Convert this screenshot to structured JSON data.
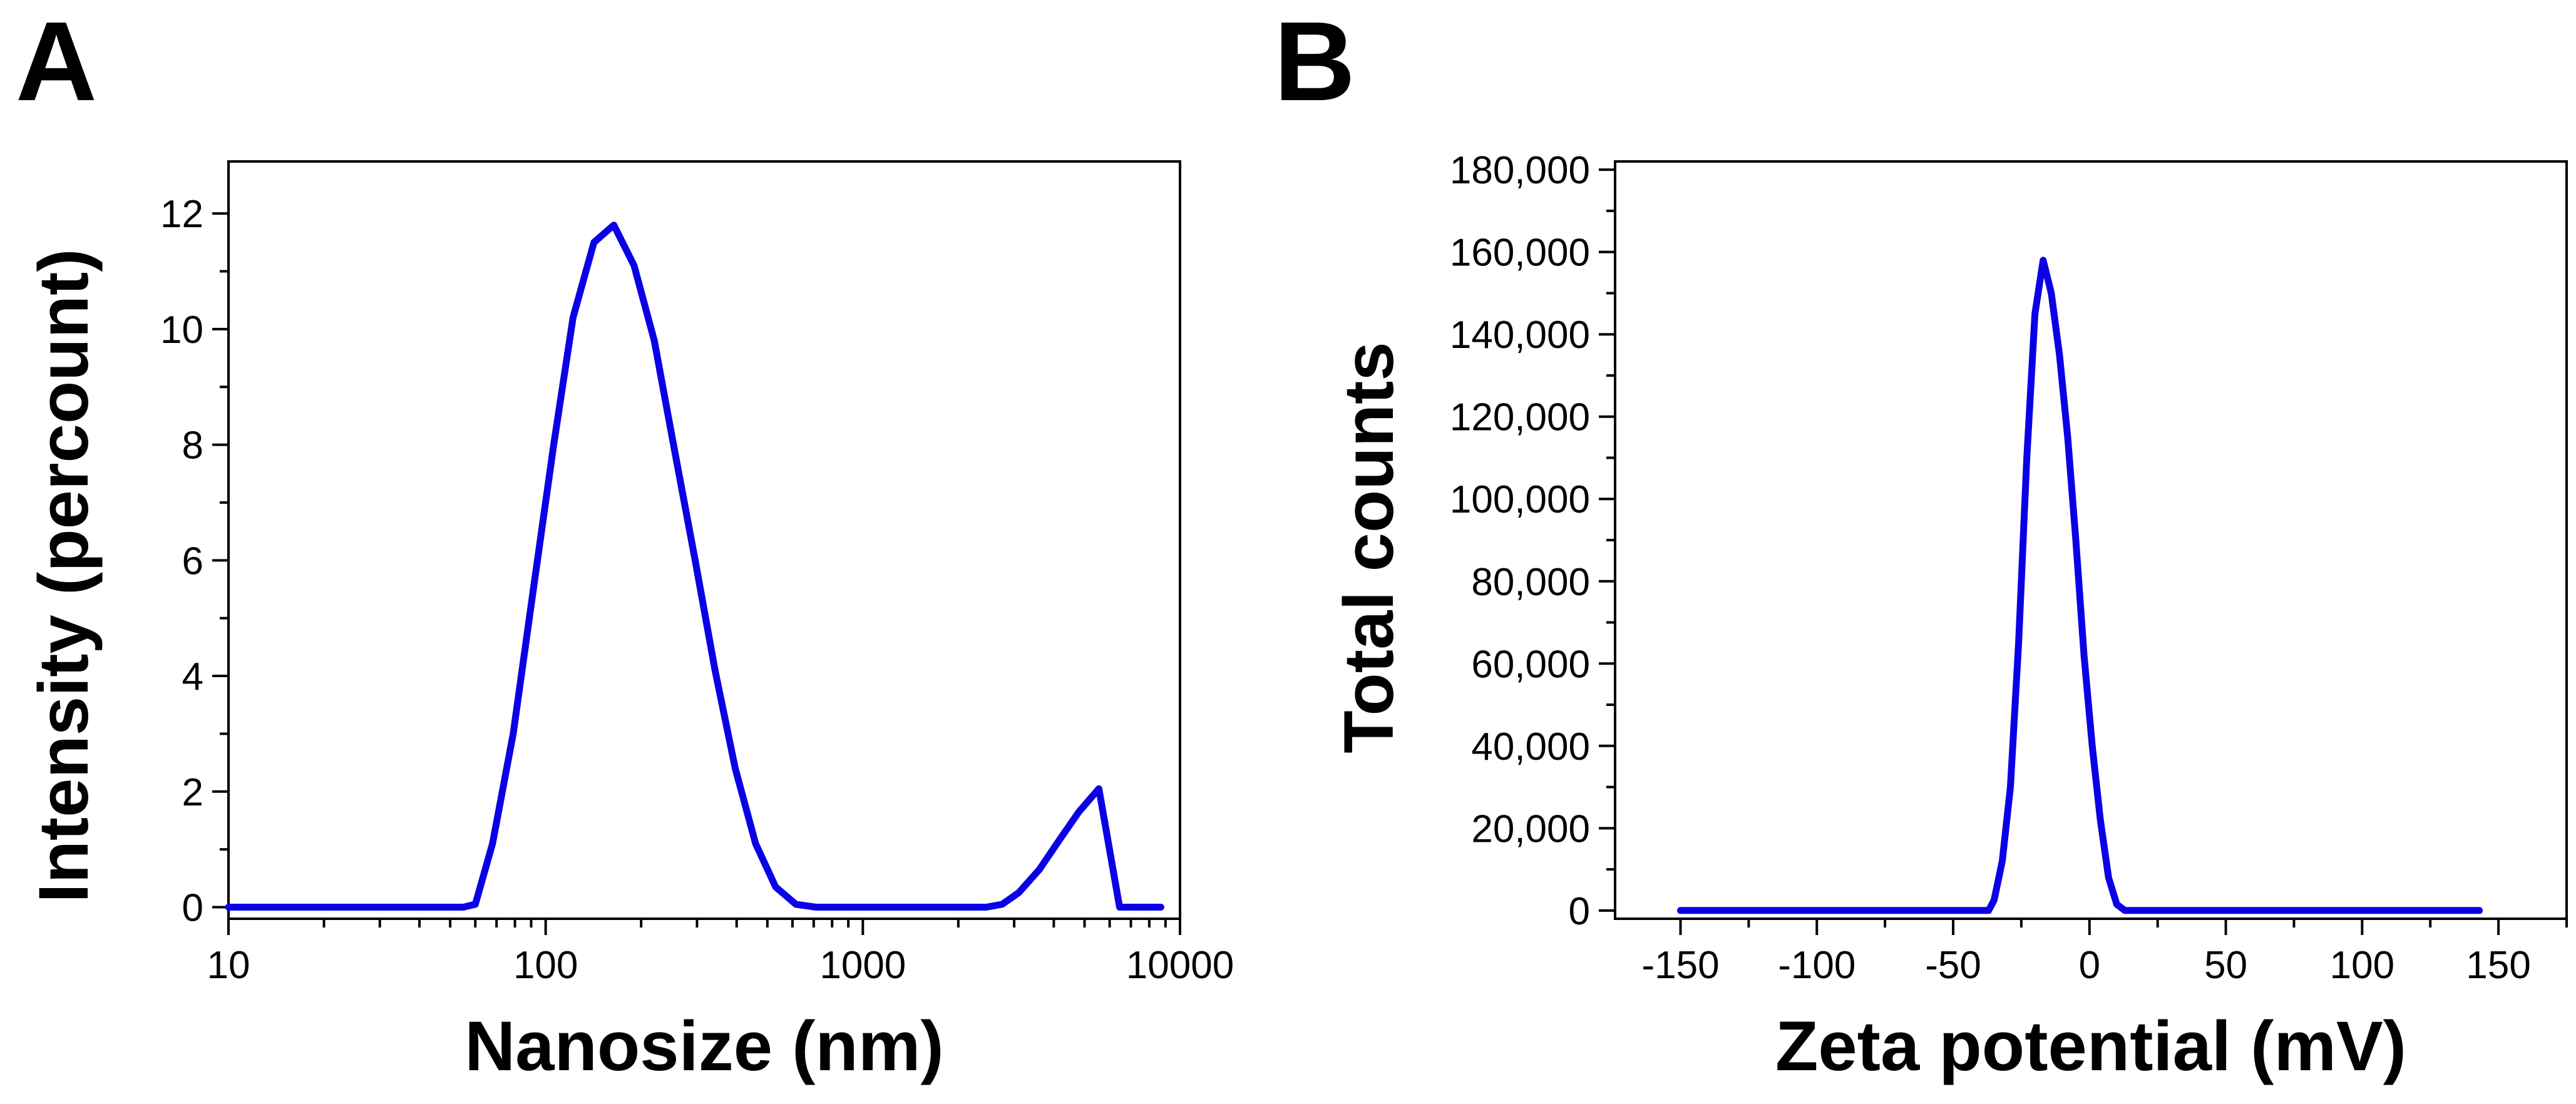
{
  "colors": {
    "series": "#0a00e6",
    "axis": "#000000"
  },
  "chart_data": [
    {
      "type": "line",
      "panel": "A",
      "title": "",
      "xlabel": "Nanosize (nm)",
      "ylabel": "Intensity (percount)",
      "xscale": "log",
      "xlim": [
        10,
        10000
      ],
      "ylim": [
        -0.2,
        12.9
      ],
      "grid": false,
      "xticks": [
        {
          "value": 10,
          "label": "10"
        },
        {
          "value": 100,
          "label": "100"
        },
        {
          "value": 1000,
          "label": "1000"
        },
        {
          "value": 10000,
          "label": "10000"
        }
      ],
      "yticks": [
        {
          "value": 0,
          "label": "0"
        },
        {
          "value": 2,
          "label": "2"
        },
        {
          "value": 4,
          "label": "4"
        },
        {
          "value": 6,
          "label": "6"
        },
        {
          "value": 8,
          "label": "8"
        },
        {
          "value": 10,
          "label": "10"
        },
        {
          "value": 12,
          "label": "12"
        }
      ],
      "series": [
        {
          "name": "Intensity",
          "x": [
            10,
            20,
            40,
            55,
            60,
            68,
            79,
            92,
            106,
            122,
            142,
            164,
            190,
            220,
            255,
            296,
            342,
            396,
            459,
            531,
            615,
            712,
            825,
            955,
            1100,
            1300,
            1500,
            1800,
            2100,
            2450,
            2750,
            3100,
            3600,
            4150,
            4800,
            5550,
            6450,
            7000,
            8000,
            8700
          ],
          "y": [
            0,
            0,
            0,
            0,
            0.05,
            1.1,
            3.0,
            5.6,
            8.0,
            10.2,
            11.5,
            11.8,
            11.1,
            9.8,
            7.9,
            6.0,
            4.1,
            2.4,
            1.1,
            0.35,
            0.05,
            0,
            0,
            0,
            0,
            0,
            0,
            0,
            0,
            0,
            0.05,
            0.25,
            0.65,
            1.15,
            1.65,
            2.05,
            0,
            0,
            0,
            0
          ]
        }
      ]
    },
    {
      "type": "line",
      "panel": "B",
      "title": "",
      "xlabel": "Zeta potential (mV)",
      "ylabel": "Total counts",
      "xlim": [
        -174,
        175
      ],
      "ylim": [
        -2000,
        182000
      ],
      "grid": false,
      "xticks": [
        {
          "value": -150,
          "label": "-150"
        },
        {
          "value": -100,
          "label": "-100"
        },
        {
          "value": -50,
          "label": "-50"
        },
        {
          "value": 0,
          "label": "0"
        },
        {
          "value": 50,
          "label": "50"
        },
        {
          "value": 100,
          "label": "100"
        },
        {
          "value": 150,
          "label": "150"
        }
      ],
      "yticks": [
        {
          "value": 0,
          "label": "0"
        },
        {
          "value": 20000,
          "label": "20,000"
        },
        {
          "value": 40000,
          "label": "40,000"
        },
        {
          "value": 60000,
          "label": "60,000"
        },
        {
          "value": 80000,
          "label": "80,000"
        },
        {
          "value": 100000,
          "label": "100,000"
        },
        {
          "value": 120000,
          "label": "120,000"
        },
        {
          "value": 140000,
          "label": "140,000"
        },
        {
          "value": 160000,
          "label": "160,000"
        },
        {
          "value": 180000,
          "label": "180,000"
        }
      ],
      "series": [
        {
          "name": "Total counts",
          "x": [
            -150,
            -100,
            -50,
            -37,
            -35,
            -32,
            -29,
            -26,
            -23,
            -20,
            -17,
            -14,
            -11,
            -8,
            -5,
            -2,
            1,
            4,
            7,
            10,
            13,
            50,
            100,
            143
          ],
          "y": [
            0,
            0,
            0,
            0,
            2500,
            12000,
            30000,
            65000,
            110000,
            145000,
            158000,
            150000,
            135000,
            115000,
            90000,
            62000,
            40000,
            22000,
            8000,
            1500,
            0,
            0,
            0,
            0
          ]
        }
      ]
    }
  ]
}
